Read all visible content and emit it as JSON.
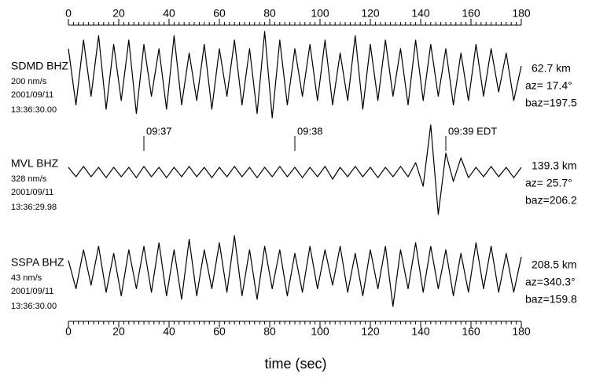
{
  "chart_data": {
    "type": "line",
    "xlabel": "time (sec)",
    "xlim": [
      0,
      180
    ],
    "xticks": [
      0,
      20,
      40,
      60,
      80,
      100,
      120,
      140,
      160,
      180
    ],
    "xminor_step": 2,
    "x": [
      0,
      3,
      6,
      9,
      12,
      15,
      18,
      21,
      24,
      27,
      30,
      33,
      36,
      39,
      42,
      45,
      48,
      51,
      54,
      57,
      60,
      63,
      66,
      69,
      72,
      75,
      78,
      81,
      84,
      87,
      90,
      93,
      96,
      99,
      102,
      105,
      108,
      111,
      114,
      117,
      120,
      123,
      126,
      129,
      132,
      135,
      138,
      141,
      144,
      147,
      150,
      153,
      156,
      159,
      162,
      165,
      168,
      171,
      174,
      177,
      180
    ],
    "color": "#000000",
    "markers": [
      {
        "x": 30,
        "label": "09:37"
      },
      {
        "x": 90,
        "label": "09:38"
      },
      {
        "x": 150,
        "label": "09:39 EDT"
      }
    ],
    "series": [
      {
        "name": "SDMD BHZ",
        "amplitude": "200 nm/s",
        "date": "2001/09/11",
        "time": "13:36:30.00",
        "distance": "62.7 km",
        "az": "az= 17.4°",
        "baz": "baz=197.5",
        "values": [
          0.6,
          -0.7,
          0.8,
          -0.5,
          0.9,
          -0.8,
          0.7,
          -0.6,
          0.8,
          -0.9,
          0.7,
          -0.5,
          0.6,
          -0.8,
          0.9,
          -0.7,
          0.5,
          -0.6,
          0.7,
          -0.8,
          0.6,
          -0.5,
          0.8,
          -0.7,
          0.6,
          -0.9,
          1.0,
          -1.0,
          0.8,
          -0.7,
          0.6,
          -0.5,
          0.7,
          -0.6,
          0.8,
          -0.7,
          0.5,
          -0.6,
          0.9,
          -0.8,
          0.7,
          -0.6,
          0.8,
          -0.5,
          0.6,
          -0.7,
          0.8,
          -0.6,
          0.7,
          -0.5,
          0.6,
          -0.7,
          0.5,
          -0.6,
          0.7,
          -0.5,
          0.6,
          -0.4,
          0.5,
          -0.6,
          0.2
        ]
      },
      {
        "name": "MVL BHZ",
        "amplitude": "328 nm/s",
        "date": "2001/09/11",
        "time": "13:36:29.98",
        "distance": "139.3 km",
        "az": "az= 25.7°",
        "baz": "baz=206.2",
        "values": [
          0.1,
          -0.1,
          0.12,
          -0.1,
          0.1,
          -0.12,
          0.1,
          -0.1,
          0.1,
          -0.12,
          0.12,
          -0.1,
          0.1,
          -0.12,
          0.1,
          -0.1,
          0.12,
          -0.1,
          0.1,
          -0.12,
          0.1,
          -0.1,
          0.12,
          -0.1,
          0.1,
          -0.12,
          0.1,
          -0.1,
          0.12,
          -0.1,
          0.1,
          -0.12,
          0.1,
          -0.1,
          0.12,
          -0.15,
          0.1,
          -0.1,
          0.12,
          -0.1,
          0.1,
          -0.12,
          0.1,
          -0.1,
          0.12,
          -0.1,
          0.2,
          -0.3,
          1.0,
          -0.9,
          0.4,
          -0.2,
          0.3,
          -0.12,
          0.1,
          -0.1,
          0.12,
          -0.1,
          0.1,
          -0.12,
          0.1
        ]
      },
      {
        "name": "SSPA BHZ",
        "amplitude": "43 nm/s",
        "date": "2001/09/11",
        "time": "13:36:30.00",
        "distance": "208.5 km",
        "az": "az=340.3°",
        "baz": "baz=159.8",
        "values": [
          0.3,
          -0.5,
          0.6,
          -0.4,
          0.7,
          -0.6,
          0.5,
          -0.7,
          0.6,
          -0.5,
          0.7,
          -0.6,
          0.8,
          -0.7,
          0.6,
          -0.8,
          0.9,
          -0.7,
          0.6,
          -0.5,
          0.8,
          -0.6,
          1.0,
          -0.7,
          0.6,
          -0.8,
          0.7,
          -0.5,
          0.6,
          -0.7,
          0.5,
          -0.6,
          0.7,
          -0.5,
          0.6,
          -0.4,
          0.7,
          -0.6,
          0.5,
          -0.7,
          0.6,
          -0.5,
          0.7,
          -1.0,
          0.6,
          -0.5,
          0.8,
          -0.6,
          0.7,
          -0.5,
          0.6,
          -0.7,
          0.5,
          -0.6,
          0.8,
          -0.5,
          0.7,
          -0.6,
          0.5,
          -0.6,
          0.4
        ]
      }
    ]
  }
}
